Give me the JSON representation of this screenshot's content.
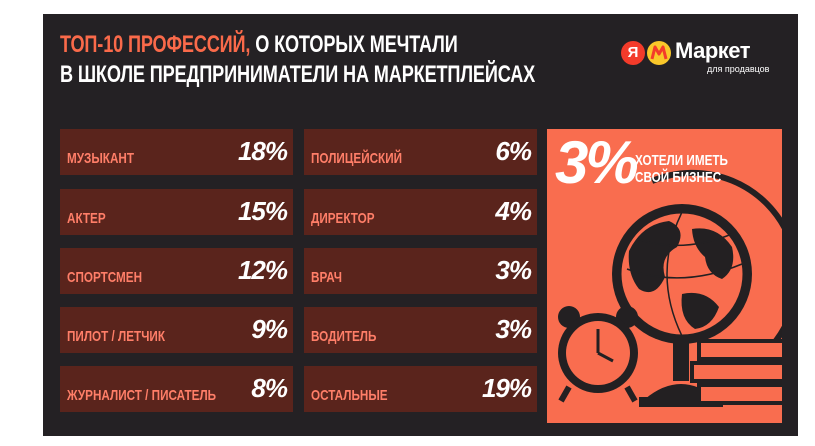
{
  "header": {
    "title_accent": "ТОП-10 ПРОФЕССИЙ,",
    "title_rest": " О КОТОРЫХ МЕЧТАЛИ",
    "title_line2": "В ШКОЛЕ ПРЕДПРИНИМАТЕЛИ НА МАРКЕТПЛЕЙСАХ"
  },
  "logo": {
    "ya": "Я",
    "name": "Маркет",
    "subtitle": "для продавцов"
  },
  "professions": [
    {
      "label": "МУЗЫКАНТ",
      "value": "18%"
    },
    {
      "label": "АКТЕР",
      "value": "15%"
    },
    {
      "label": "СПОРТСМЕН",
      "value": "12%"
    },
    {
      "label": "ПИЛОТ / ЛЕТЧИК",
      "value": "9%"
    },
    {
      "label": "ЖУРНАЛИСТ / ПИСАТЕЛЬ",
      "value": "8%"
    },
    {
      "label": "ПОЛИЦЕЙСКИЙ",
      "value": "6%"
    },
    {
      "label": "ДИРЕКТОР",
      "value": "4%"
    },
    {
      "label": "ВРАЧ",
      "value": "3%"
    },
    {
      "label": "ВОДИТЕЛЬ",
      "value": "3%"
    },
    {
      "label": "ОСТАЛЬНЫЕ",
      "value": "19%"
    }
  ],
  "promo": {
    "value": "3%",
    "line1": "ХОТЕЛИ ИМЕТЬ",
    "line2": "СВОЙ БИЗНЕС",
    "illustration": "globe-clock-books-icon"
  },
  "colors": {
    "background": "#242124",
    "accent": "#fa6a4a",
    "card": "#5a241c",
    "card_label": "#ff7e68",
    "promo": "#f96d4f"
  }
}
